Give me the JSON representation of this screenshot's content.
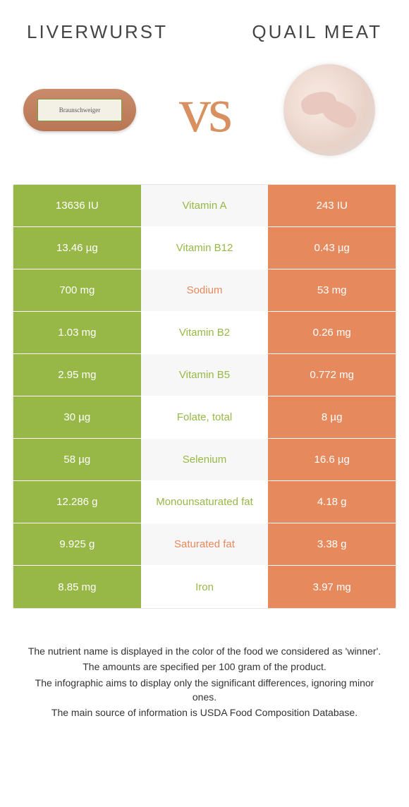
{
  "colors": {
    "left_bar": "#97b847",
    "right_bar": "#e68a5e",
    "mid_bg_odd": "#f7f7f7",
    "mid_bg_even": "#ffffff",
    "mid_text_left": "#97b847",
    "mid_text_right": "#e68a5e",
    "vs": "#d89060"
  },
  "titles": {
    "left": "Liverwurst",
    "right": "Quail meat"
  },
  "vs_label": "vs",
  "rows": [
    {
      "left": "13636 IU",
      "mid": "Vitamin A",
      "right": "243 IU",
      "winner": "left"
    },
    {
      "left": "13.46 µg",
      "mid": "Vitamin B12",
      "right": "0.43 µg",
      "winner": "left"
    },
    {
      "left": "700 mg",
      "mid": "Sodium",
      "right": "53 mg",
      "winner": "right"
    },
    {
      "left": "1.03 mg",
      "mid": "Vitamin B2",
      "right": "0.26 mg",
      "winner": "left"
    },
    {
      "left": "2.95 mg",
      "mid": "Vitamin B5",
      "right": "0.772 mg",
      "winner": "left"
    },
    {
      "left": "30 µg",
      "mid": "Folate, total",
      "right": "8 µg",
      "winner": "left"
    },
    {
      "left": "58 µg",
      "mid": "Selenium",
      "right": "16.6 µg",
      "winner": "left"
    },
    {
      "left": "12.286 g",
      "mid": "Monounsaturated fat",
      "right": "4.18 g",
      "winner": "left"
    },
    {
      "left": "9.925 g",
      "mid": "Saturated fat",
      "right": "3.38 g",
      "winner": "right"
    },
    {
      "left": "8.85 mg",
      "mid": "Iron",
      "right": "3.97 mg",
      "winner": "left"
    }
  ],
  "footnotes": [
    "The nutrient name is displayed in the color of the food we considered as 'winner'.",
    "The amounts are specified per 100 gram of the product.",
    "The infographic aims to display only the significant differences, ignoring minor ones.",
    "The main source of information is USDA Food Composition Database."
  ]
}
